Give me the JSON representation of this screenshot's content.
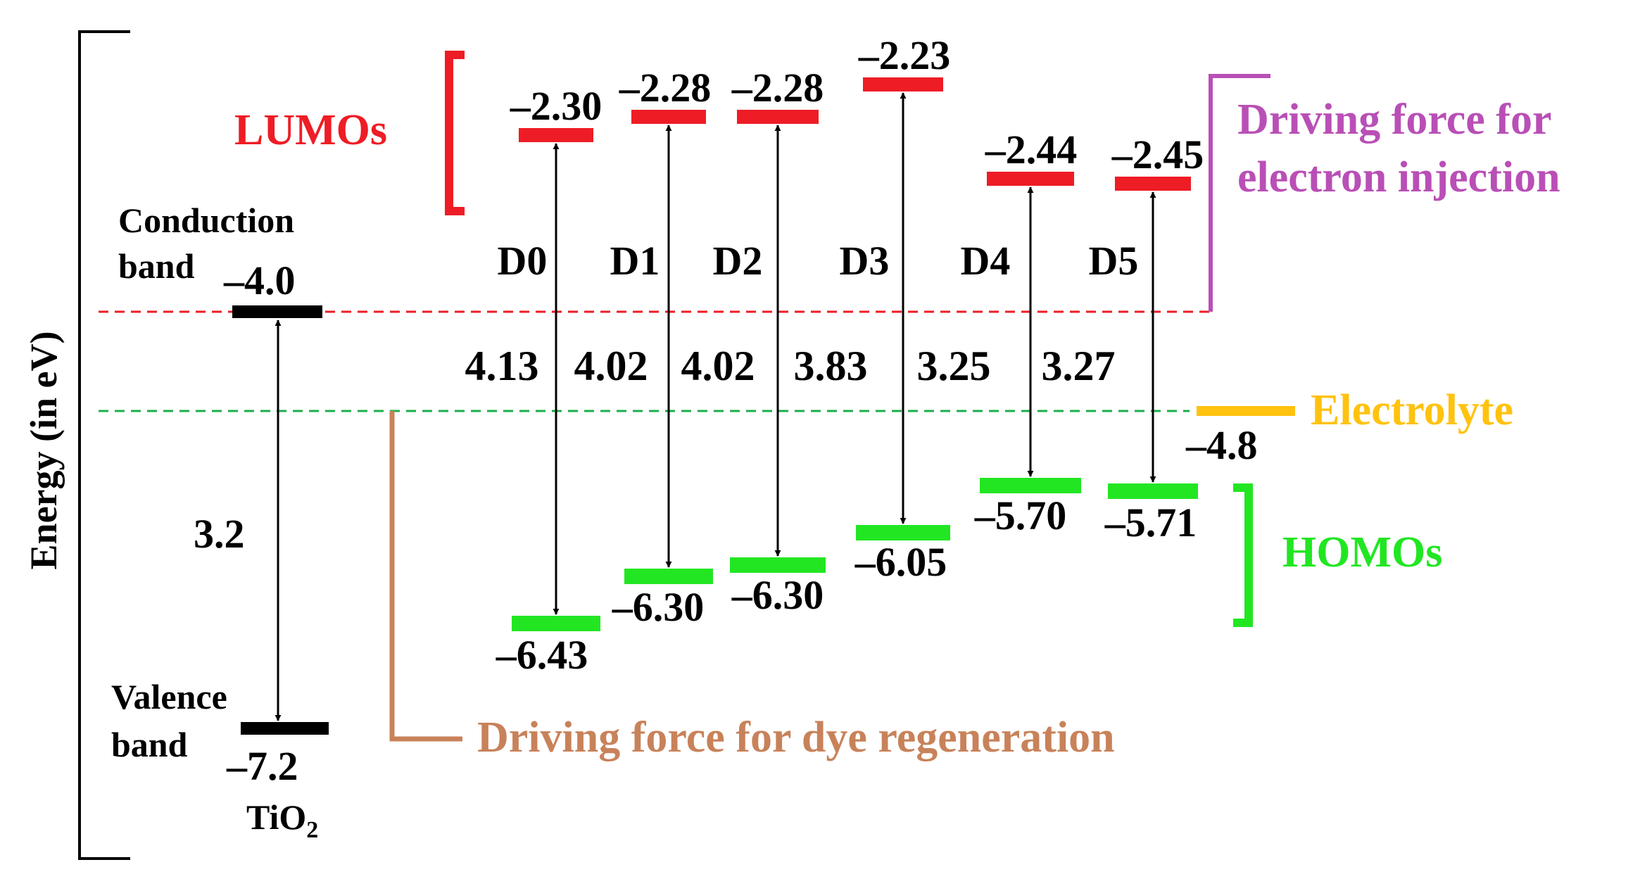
{
  "axis_label": "Energy (in eV)",
  "tio2": {
    "conduction_label_1": "Conduction",
    "conduction_label_2": "band",
    "conduction_value": "–4.0",
    "valence_label_1": "Valence",
    "valence_label_2": "band",
    "valence_value": "–7.2",
    "gap_value": "3.2",
    "name": "TiO",
    "name_sub": "2"
  },
  "lumos_label": "LUMOs",
  "homos_label": "HOMOs",
  "electrolyte": {
    "label": "Electrolyte",
    "value": "–4.8"
  },
  "injection_label_1": "Driving force for",
  "injection_label_2": "electron injection",
  "regeneration_label": "Driving force for dye regeneration",
  "dyes": [
    {
      "name": "D0",
      "lumo": "–2.30",
      "homo": "–6.43",
      "gap": "4.13"
    },
    {
      "name": "D1",
      "lumo": "–2.28",
      "homo": "–6.30",
      "gap": "4.02"
    },
    {
      "name": "D2",
      "lumo": "–2.28",
      "homo": "–6.30",
      "gap": "4.02"
    },
    {
      "name": "D3",
      "lumo": "–2.23",
      "homo": "–6.05",
      "gap": "3.83"
    },
    {
      "name": "D4",
      "lumo": "–2.44",
      "homo": "–5.70",
      "gap": "3.25"
    },
    {
      "name": "D5",
      "lumo": "–2.45",
      "homo": "–5.71",
      "gap": "3.27"
    }
  ],
  "colors": {
    "lumo": "#ee1c25",
    "homo": "#22e622",
    "electrolyte": "#ffc20e",
    "injection": "#b94fb6",
    "regeneration": "#c8825a",
    "conduction_line": "#ee1c25",
    "electrolyte_line": "#1aaf4b",
    "black": "#000000"
  }
}
